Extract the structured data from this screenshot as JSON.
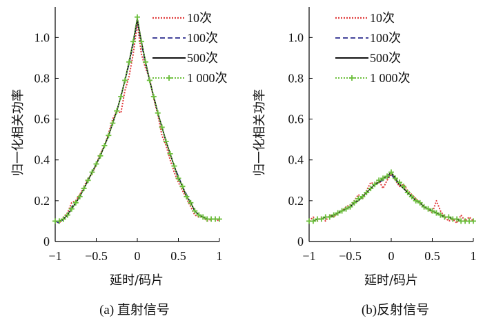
{
  "chart_data": [
    {
      "type": "line",
      "panel": "a",
      "caption": "(a) 直射信号",
      "xlabel": "延时/码片",
      "ylabel": "归一化相关功率",
      "xlim": [
        -1,
        1
      ],
      "ylim": [
        0,
        1.15
      ],
      "xticks": [
        -1,
        -0.5,
        0,
        0.5,
        1
      ],
      "xtick_labels": [
        "−1",
        "−0.5",
        "0",
        "0.5",
        "1"
      ],
      "yticks": [
        0,
        0.2,
        0.4,
        0.6,
        0.8,
        1.0
      ],
      "ytick_labels": [
        "0",
        "0.2",
        "0.4",
        "0.6",
        "0.8",
        "1.0"
      ],
      "legend_position": "top-right",
      "series": [
        {
          "name": "10次",
          "style": "dotted",
          "color": "#e03c3c",
          "x": [
            -1,
            -0.95,
            -0.9,
            -0.85,
            -0.8,
            -0.75,
            -0.7,
            -0.65,
            -0.6,
            -0.55,
            -0.5,
            -0.45,
            -0.4,
            -0.35,
            -0.3,
            -0.25,
            -0.2,
            -0.15,
            -0.1,
            -0.05,
            0,
            0.05,
            0.1,
            0.15,
            0.2,
            0.25,
            0.3,
            0.35,
            0.4,
            0.45,
            0.5,
            0.55,
            0.6,
            0.65,
            0.7,
            0.75,
            0.8,
            0.85,
            0.9,
            0.95,
            1
          ],
          "values": [
            0.1,
            0.09,
            0.12,
            0.14,
            0.19,
            0.2,
            0.23,
            0.27,
            0.31,
            0.33,
            0.38,
            0.43,
            0.47,
            0.53,
            0.6,
            0.64,
            0.63,
            0.74,
            0.81,
            0.92,
            1.07,
            0.92,
            0.85,
            0.8,
            0.7,
            0.62,
            0.52,
            0.47,
            0.4,
            0.34,
            0.29,
            0.25,
            0.21,
            0.17,
            0.13,
            0.12,
            0.12,
            0.1,
            0.11,
            0.11,
            0.1
          ]
        },
        {
          "name": "100次",
          "style": "dashed",
          "color": "#2a2a8c",
          "x": [
            -1,
            -0.95,
            -0.9,
            -0.85,
            -0.8,
            -0.75,
            -0.7,
            -0.65,
            -0.6,
            -0.55,
            -0.5,
            -0.45,
            -0.4,
            -0.35,
            -0.3,
            -0.25,
            -0.2,
            -0.15,
            -0.1,
            -0.05,
            0,
            0.05,
            0.1,
            0.15,
            0.2,
            0.25,
            0.3,
            0.35,
            0.4,
            0.45,
            0.5,
            0.55,
            0.6,
            0.65,
            0.7,
            0.75,
            0.8,
            0.85,
            0.9,
            0.95,
            1
          ],
          "values": [
            0.1,
            0.09,
            0.11,
            0.13,
            0.17,
            0.19,
            0.22,
            0.26,
            0.3,
            0.34,
            0.38,
            0.42,
            0.47,
            0.52,
            0.58,
            0.64,
            0.71,
            0.79,
            0.87,
            0.97,
            1.08,
            0.97,
            0.87,
            0.79,
            0.71,
            0.63,
            0.56,
            0.49,
            0.43,
            0.37,
            0.32,
            0.27,
            0.23,
            0.19,
            0.15,
            0.13,
            0.12,
            0.11,
            0.11,
            0.11,
            0.11
          ]
        },
        {
          "name": "500次",
          "style": "solid",
          "color": "#111111",
          "x": [
            -1,
            -0.95,
            -0.9,
            -0.85,
            -0.8,
            -0.75,
            -0.7,
            -0.65,
            -0.6,
            -0.55,
            -0.5,
            -0.45,
            -0.4,
            -0.35,
            -0.3,
            -0.25,
            -0.2,
            -0.15,
            -0.1,
            -0.05,
            0,
            0.05,
            0.1,
            0.15,
            0.2,
            0.25,
            0.3,
            0.35,
            0.4,
            0.45,
            0.5,
            0.55,
            0.6,
            0.65,
            0.7,
            0.75,
            0.8,
            0.85,
            0.9,
            0.95,
            1
          ],
          "values": [
            0.1,
            0.1,
            0.11,
            0.13,
            0.16,
            0.19,
            0.22,
            0.26,
            0.3,
            0.34,
            0.38,
            0.42,
            0.47,
            0.52,
            0.58,
            0.64,
            0.71,
            0.79,
            0.88,
            0.98,
            1.09,
            0.98,
            0.88,
            0.79,
            0.71,
            0.63,
            0.56,
            0.49,
            0.43,
            0.37,
            0.31,
            0.27,
            0.22,
            0.19,
            0.15,
            0.13,
            0.12,
            0.11,
            0.11,
            0.11,
            0.11
          ]
        },
        {
          "name": "1 000次",
          "style": "dotted-marker",
          "color": "#6cbf3c",
          "x": [
            -1,
            -0.95,
            -0.9,
            -0.85,
            -0.8,
            -0.75,
            -0.7,
            -0.65,
            -0.6,
            -0.55,
            -0.5,
            -0.45,
            -0.4,
            -0.35,
            -0.3,
            -0.25,
            -0.2,
            -0.15,
            -0.1,
            -0.05,
            0,
            0.05,
            0.1,
            0.15,
            0.2,
            0.25,
            0.3,
            0.35,
            0.4,
            0.45,
            0.5,
            0.55,
            0.6,
            0.65,
            0.7,
            0.75,
            0.8,
            0.85,
            0.9,
            0.95,
            1
          ],
          "values": [
            0.1,
            0.1,
            0.11,
            0.13,
            0.16,
            0.19,
            0.22,
            0.26,
            0.3,
            0.34,
            0.38,
            0.42,
            0.47,
            0.52,
            0.58,
            0.64,
            0.71,
            0.79,
            0.88,
            0.98,
            1.1,
            0.98,
            0.88,
            0.79,
            0.71,
            0.63,
            0.56,
            0.49,
            0.43,
            0.37,
            0.31,
            0.27,
            0.22,
            0.19,
            0.15,
            0.13,
            0.12,
            0.11,
            0.11,
            0.11,
            0.11
          ]
        }
      ]
    },
    {
      "type": "line",
      "panel": "b",
      "caption": "(b)反射信号",
      "xlabel": "延时/码片",
      "ylabel": "归一化相关功率",
      "xlim": [
        -1,
        1
      ],
      "ylim": [
        0,
        1.15
      ],
      "xticks": [
        -1,
        -0.5,
        0,
        0.5,
        1
      ],
      "xtick_labels": [
        "−1",
        "−0.5",
        "0",
        "0.5",
        "1"
      ],
      "yticks": [
        0,
        0.2,
        0.4,
        0.6,
        0.8,
        1.0
      ],
      "ytick_labels": [
        "0",
        "0.2",
        "0.4",
        "0.6",
        "0.8",
        "1.0"
      ],
      "legend_position": "top-right",
      "series": [
        {
          "name": "10次",
          "style": "dotted",
          "color": "#e03c3c",
          "x": [
            -1,
            -0.95,
            -0.9,
            -0.85,
            -0.8,
            -0.75,
            -0.7,
            -0.65,
            -0.6,
            -0.55,
            -0.5,
            -0.45,
            -0.4,
            -0.35,
            -0.3,
            -0.25,
            -0.2,
            -0.15,
            -0.1,
            -0.05,
            0,
            0.05,
            0.1,
            0.15,
            0.2,
            0.25,
            0.3,
            0.35,
            0.4,
            0.45,
            0.5,
            0.55,
            0.6,
            0.65,
            0.7,
            0.75,
            0.8,
            0.85,
            0.9,
            0.95,
            1
          ],
          "values": [
            0.1,
            0.12,
            0.1,
            0.12,
            0.1,
            0.13,
            0.12,
            0.14,
            0.15,
            0.17,
            0.18,
            0.2,
            0.23,
            0.21,
            0.25,
            0.29,
            0.28,
            0.3,
            0.26,
            0.3,
            0.33,
            0.3,
            0.27,
            0.28,
            0.25,
            0.23,
            0.21,
            0.19,
            0.17,
            0.16,
            0.14,
            0.2,
            0.15,
            0.12,
            0.1,
            0.11,
            0.09,
            0.13,
            0.1,
            0.12,
            0.1
          ]
        },
        {
          "name": "100次",
          "style": "dashed",
          "color": "#2a2a8c",
          "x": [
            -1,
            -0.95,
            -0.9,
            -0.85,
            -0.8,
            -0.75,
            -0.7,
            -0.65,
            -0.6,
            -0.55,
            -0.5,
            -0.45,
            -0.4,
            -0.35,
            -0.3,
            -0.25,
            -0.2,
            -0.15,
            -0.1,
            -0.05,
            0,
            0.05,
            0.1,
            0.15,
            0.2,
            0.25,
            0.3,
            0.35,
            0.4,
            0.45,
            0.5,
            0.55,
            0.6,
            0.65,
            0.7,
            0.75,
            0.8,
            0.85,
            0.9,
            0.95,
            1
          ],
          "values": [
            0.1,
            0.1,
            0.11,
            0.11,
            0.12,
            0.12,
            0.13,
            0.14,
            0.15,
            0.16,
            0.17,
            0.19,
            0.2,
            0.22,
            0.24,
            0.26,
            0.28,
            0.29,
            0.3,
            0.31,
            0.33,
            0.3,
            0.28,
            0.26,
            0.24,
            0.22,
            0.2,
            0.19,
            0.17,
            0.16,
            0.15,
            0.14,
            0.13,
            0.12,
            0.12,
            0.11,
            0.11,
            0.1,
            0.1,
            0.1,
            0.1
          ]
        },
        {
          "name": "500次",
          "style": "solid",
          "color": "#111111",
          "x": [
            -1,
            -0.95,
            -0.9,
            -0.85,
            -0.8,
            -0.75,
            -0.7,
            -0.65,
            -0.6,
            -0.55,
            -0.5,
            -0.45,
            -0.4,
            -0.35,
            -0.3,
            -0.25,
            -0.2,
            -0.15,
            -0.1,
            -0.05,
            0,
            0.05,
            0.1,
            0.15,
            0.2,
            0.25,
            0.3,
            0.35,
            0.4,
            0.45,
            0.5,
            0.55,
            0.6,
            0.65,
            0.7,
            0.75,
            0.8,
            0.85,
            0.9,
            0.95,
            1
          ],
          "values": [
            0.1,
            0.1,
            0.11,
            0.11,
            0.12,
            0.12,
            0.13,
            0.14,
            0.15,
            0.16,
            0.17,
            0.19,
            0.2,
            0.22,
            0.24,
            0.26,
            0.28,
            0.29,
            0.31,
            0.32,
            0.34,
            0.31,
            0.28,
            0.26,
            0.24,
            0.22,
            0.2,
            0.19,
            0.17,
            0.16,
            0.15,
            0.14,
            0.13,
            0.12,
            0.12,
            0.11,
            0.11,
            0.1,
            0.1,
            0.1,
            0.1
          ]
        },
        {
          "name": "1 000次",
          "style": "dotted-marker",
          "color": "#6cbf3c",
          "x": [
            -1,
            -0.95,
            -0.9,
            -0.85,
            -0.8,
            -0.75,
            -0.7,
            -0.65,
            -0.6,
            -0.55,
            -0.5,
            -0.45,
            -0.4,
            -0.35,
            -0.3,
            -0.25,
            -0.2,
            -0.15,
            -0.1,
            -0.05,
            0,
            0.05,
            0.1,
            0.15,
            0.2,
            0.25,
            0.3,
            0.35,
            0.4,
            0.45,
            0.5,
            0.55,
            0.6,
            0.65,
            0.7,
            0.75,
            0.8,
            0.85,
            0.9,
            0.95,
            1
          ],
          "values": [
            0.1,
            0.1,
            0.11,
            0.11,
            0.12,
            0.12,
            0.13,
            0.14,
            0.15,
            0.16,
            0.17,
            0.19,
            0.21,
            0.22,
            0.24,
            0.26,
            0.28,
            0.3,
            0.31,
            0.32,
            0.34,
            0.31,
            0.29,
            0.27,
            0.24,
            0.22,
            0.2,
            0.19,
            0.17,
            0.16,
            0.15,
            0.14,
            0.13,
            0.12,
            0.12,
            0.11,
            0.11,
            0.1,
            0.1,
            0.1,
            0.1
          ]
        }
      ]
    }
  ]
}
